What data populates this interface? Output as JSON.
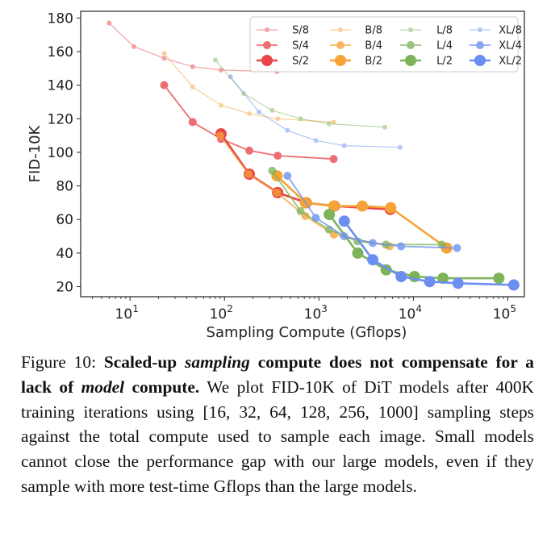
{
  "chart_data": {
    "type": "line",
    "xlabel": "Sampling Compute (Gflops)",
    "ylabel": "FID-10K",
    "x_scale": "log",
    "xlim": [
      3,
      150000
    ],
    "ylim": [
      14,
      184
    ],
    "x_ticks": [
      {
        "value": 10,
        "base": "10",
        "exp": "1"
      },
      {
        "value": 100,
        "base": "10",
        "exp": "2"
      },
      {
        "value": 1000,
        "base": "10",
        "exp": "3"
      },
      {
        "value": 10000,
        "base": "10",
        "exp": "4"
      },
      {
        "value": 100000,
        "base": "10",
        "exp": "5"
      }
    ],
    "y_ticks": [
      20,
      40,
      60,
      80,
      100,
      120,
      140,
      160,
      180
    ],
    "grid": false,
    "legend_position": "top-right",
    "colors": {
      "S": "#e8464b",
      "B": "#f5a336",
      "L": "#7db35a",
      "XL": "#6a8ff0"
    },
    "series": [
      {
        "name": "S/8",
        "points": [
          [
            6,
            177
          ],
          [
            11,
            163
          ],
          [
            23,
            156
          ],
          [
            46,
            151
          ],
          [
            92,
            149
          ],
          [
            360,
            148
          ]
        ]
      },
      {
        "name": "S/4",
        "points": [
          [
            23,
            140
          ],
          [
            46,
            118
          ],
          [
            92,
            108
          ],
          [
            183,
            101
          ],
          [
            366,
            98
          ],
          [
            1430,
            96
          ]
        ]
      },
      {
        "name": "S/2",
        "points": [
          [
            92,
            111
          ],
          [
            183,
            87
          ],
          [
            366,
            76
          ],
          [
            733,
            70
          ],
          [
            1460,
            68
          ],
          [
            5700,
            66
          ]
        ]
      },
      {
        "name": "B/8",
        "points": [
          [
            23,
            159
          ],
          [
            46,
            139
          ],
          [
            92,
            128
          ],
          [
            183,
            123
          ],
          [
            366,
            120
          ],
          [
            1430,
            118
          ]
        ]
      },
      {
        "name": "B/4",
        "points": [
          [
            90,
            110
          ],
          [
            180,
            87
          ],
          [
            360,
            76
          ],
          [
            720,
            62
          ],
          [
            1440,
            51
          ],
          [
            5600,
            44
          ]
        ]
      },
      {
        "name": "B/2",
        "points": [
          [
            360,
            86
          ],
          [
            720,
            70
          ],
          [
            1440,
            68
          ],
          [
            2880,
            68
          ],
          [
            5760,
            67
          ],
          [
            22500,
            43
          ]
        ]
      },
      {
        "name": "L/8",
        "points": [
          [
            80,
            155
          ],
          [
            160,
            135
          ],
          [
            320,
            125
          ],
          [
            640,
            120
          ],
          [
            1280,
            117
          ],
          [
            5000,
            115
          ]
        ]
      },
      {
        "name": "L/4",
        "points": [
          [
            320,
            89
          ],
          [
            640,
            65
          ],
          [
            1280,
            54
          ],
          [
            2560,
            47
          ],
          [
            5120,
            45
          ],
          [
            20000,
            45
          ]
        ]
      },
      {
        "name": "L/2",
        "points": [
          [
            1290,
            63
          ],
          [
            2580,
            40
          ],
          [
            5160,
            30
          ],
          [
            10300,
            26
          ],
          [
            20600,
            25
          ],
          [
            80500,
            25
          ]
        ]
      },
      {
        "name": "XL/8",
        "points": [
          [
            116,
            145
          ],
          [
            232,
            124
          ],
          [
            464,
            113
          ],
          [
            928,
            107
          ],
          [
            1856,
            104
          ],
          [
            7250,
            103
          ]
        ]
      },
      {
        "name": "XL/4",
        "points": [
          [
            464,
            86
          ],
          [
            928,
            61
          ],
          [
            1856,
            50
          ],
          [
            3712,
            46
          ],
          [
            7424,
            44
          ],
          [
            29000,
            43
          ]
        ]
      },
      {
        "name": "XL/2",
        "points": [
          [
            1860,
            59
          ],
          [
            3720,
            36
          ],
          [
            7440,
            26
          ],
          [
            14900,
            23
          ],
          [
            29800,
            22
          ],
          [
            116000,
            21
          ]
        ]
      }
    ]
  },
  "caption": {
    "figure_label": "Figure 10:",
    "bold_1": "Scaled-up",
    "bold_italic_1": "sampling",
    "bold_2": "compute does not compensate for a lack of",
    "bold_italic_2": "model",
    "bold_3": "compute.",
    "body": "We plot FID-10K of DiT models after 400K training iterations using [16, 32, 64, 128, 256, 1000] sampling steps against the total compute used to sample each image. Small models cannot close the performance gap with our large models, even if they sample with more test-time Gflops than the large models."
  }
}
